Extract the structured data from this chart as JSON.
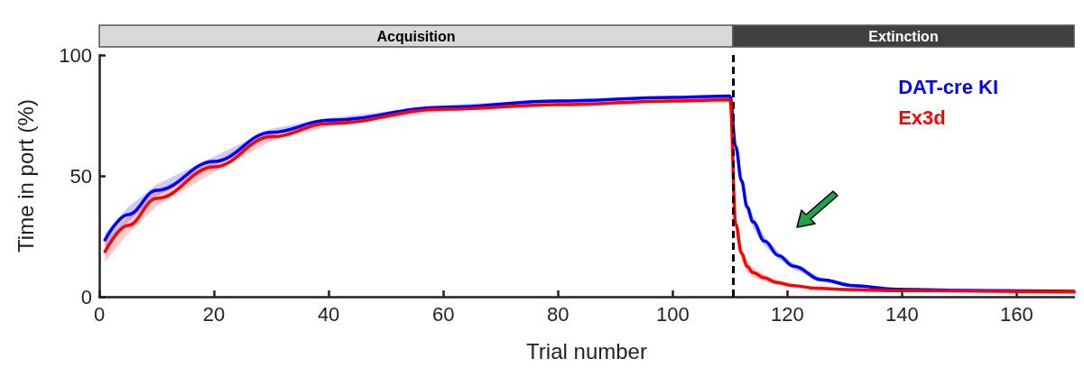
{
  "chart_data": {
    "type": "line",
    "xlabel": "Trial number",
    "ylabel": "Time in port (%)",
    "xlim": [
      0,
      170
    ],
    "xticks": [
      0,
      20,
      40,
      60,
      80,
      100,
      120,
      140,
      160
    ],
    "ylim": [
      0,
      100
    ],
    "yticks": [
      0,
      50,
      100
    ],
    "grid": false,
    "legend": "top right",
    "marker": "none",
    "line_style": "solid",
    "series": [
      {
        "name": "DAT-cre KI",
        "color": "#0000ff",
        "x": [
          1,
          5,
          10,
          20,
          30,
          40,
          60,
          80,
          100,
          110,
          111,
          112,
          113,
          114,
          116,
          118.5,
          121,
          126,
          131.5,
          139,
          150,
          170
        ],
        "values": [
          23.5,
          34,
          44,
          56,
          68,
          73,
          78.4,
          81,
          82.5,
          83,
          62,
          48,
          37,
          31,
          23,
          17,
          12.7,
          7,
          4.6,
          3.1,
          2.6,
          2.2
        ],
        "lower": [
          20.5,
          31,
          41.5,
          54,
          66.5,
          72,
          77.5,
          80.3,
          82,
          82.3,
          59,
          45,
          34.5,
          28.5,
          21,
          15.5,
          11.5,
          6.2,
          4,
          2.7,
          2.3,
          2
        ],
        "upper": [
          26.5,
          37,
          46.5,
          58,
          69.5,
          74,
          79.3,
          81.7,
          83,
          83.7,
          65,
          51,
          39.5,
          33.5,
          25,
          18.5,
          13.9,
          7.8,
          5.2,
          3.5,
          2.9,
          2.4
        ]
      },
      {
        "name": "Ex3d",
        "color": "#ff0000",
        "x": [
          1,
          5,
          10,
          20,
          30,
          40,
          60,
          80,
          100,
          110,
          111,
          112,
          113,
          114,
          116,
          118,
          121,
          125,
          130,
          140,
          170
        ],
        "values": [
          18.7,
          29.5,
          40.7,
          53.7,
          66.2,
          71.6,
          77.6,
          79.5,
          81,
          81.5,
          30,
          18,
          12.5,
          10,
          7.8,
          6,
          4.6,
          3.5,
          3,
          2.5,
          2
        ],
        "lower": [
          14.5,
          26,
          37.5,
          51.5,
          64.5,
          70.5,
          76.8,
          78.8,
          80.3,
          80.5,
          26,
          15,
          10,
          8,
          6.3,
          5,
          3.9,
          3,
          2.6,
          2.2,
          1.8
        ],
        "upper": [
          22.9,
          33,
          43.9,
          55.9,
          67.9,
          72.7,
          78.4,
          80.2,
          81.7,
          82.5,
          34,
          21,
          15,
          12,
          9.3,
          7,
          5.3,
          4,
          3.4,
          2.8,
          2.2
        ]
      }
    ],
    "ref_lines": [
      {
        "axis": "x",
        "value": 110.5,
        "color": "#000000",
        "line_style": "dashed"
      }
    ],
    "annotations": [
      "Acquisition",
      "Extinction"
    ]
  }
}
